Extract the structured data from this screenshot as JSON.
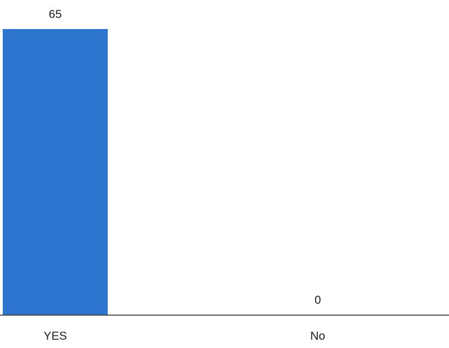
{
  "chart_data": {
    "type": "bar",
    "categories": [
      "YES",
      "No"
    ],
    "values": [
      65,
      0
    ],
    "data_labels": [
      "65",
      "0"
    ],
    "ylim": [
      0,
      65
    ],
    "grid": false,
    "legend": "none",
    "bar_color": "#2e75d0",
    "axis_color": "#404040"
  }
}
